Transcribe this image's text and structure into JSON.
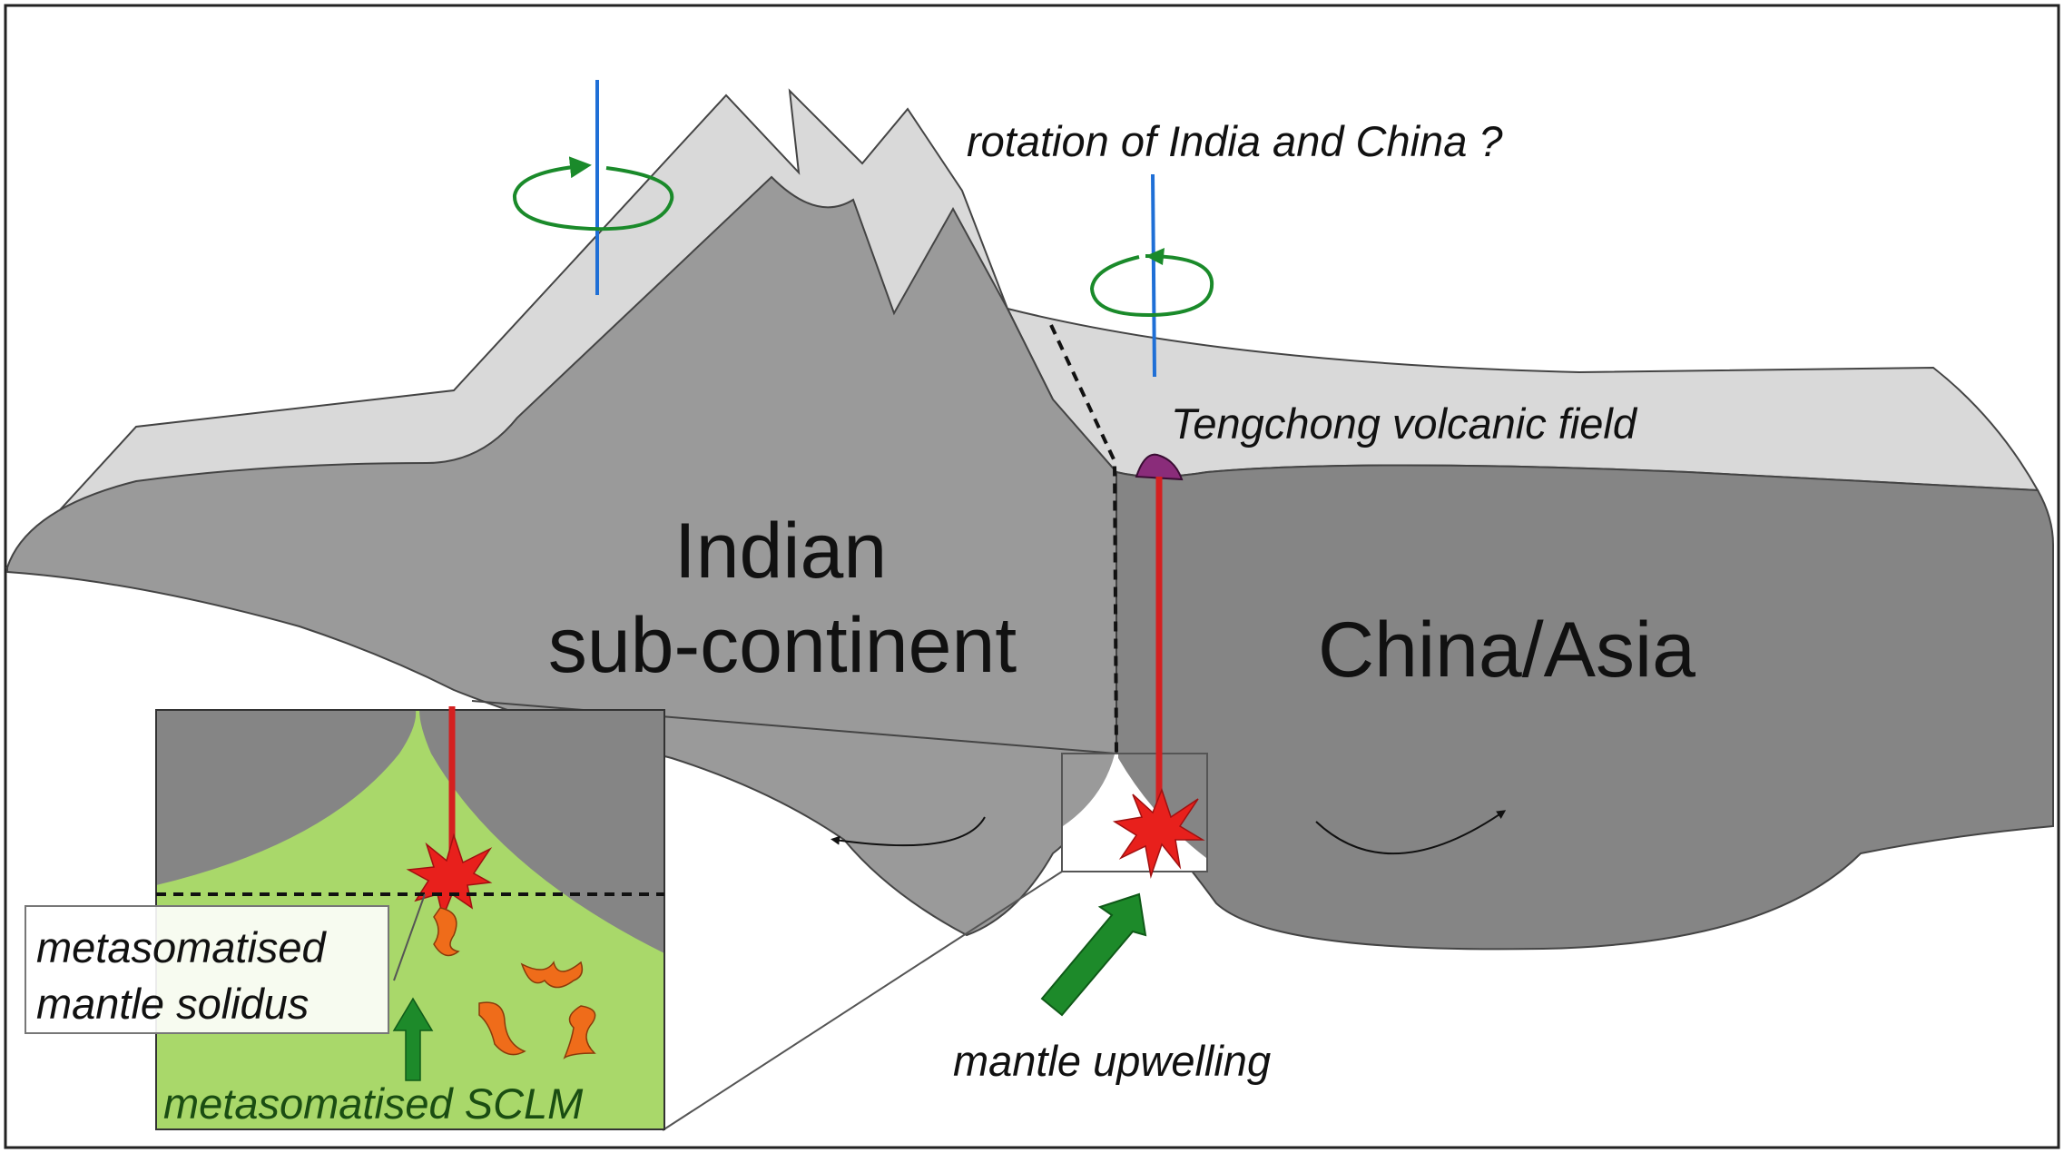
{
  "labels": {
    "rotation": "rotation of India and China ?",
    "tengchong": "Tengchong volcanic field",
    "indian_line1": "Indian",
    "indian_line2": "sub-continent",
    "china": "China/Asia",
    "mantle_upwelling": "mantle upwelling",
    "solidus_line1": "metasomatised",
    "solidus_line2": "mantle solidus",
    "sclm": "metasomatised SCLM"
  },
  "colors": {
    "plate_top": "#d9d9d9",
    "indian_plate": "#9a9a9a",
    "china_plate": "#858585",
    "sclm_green": "#a9d86a",
    "melt_channel": "#d42020",
    "melt_star": "#e8201c",
    "melt_blob": "#ef6c1a",
    "volcano": "#8a2c7a",
    "rotation_axis": "#1f6fd6",
    "rotation_arrow": "#1a8a2a",
    "upwelling_arrow": "#1d8a2a"
  },
  "icons": {
    "rotation_arrow": "circular-arrow-icon",
    "melt": "starburst-icon",
    "upwelling": "arrow-up-right-icon"
  }
}
